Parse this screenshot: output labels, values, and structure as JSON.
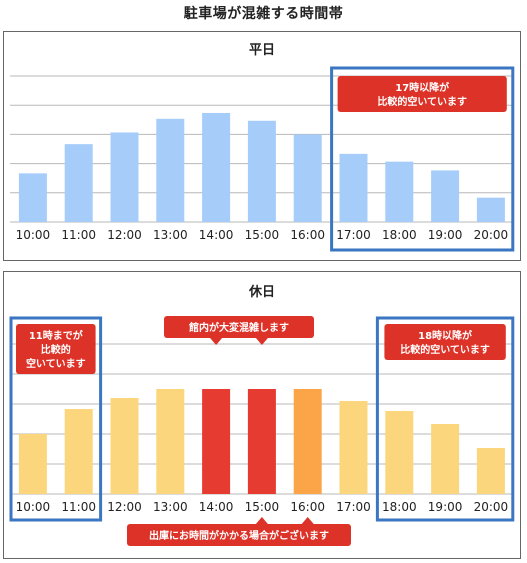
{
  "title": "駐車場が混雑する時間帯",
  "colors": {
    "weekday_bar": "#a6cdfa",
    "holiday_bar": "#fbd67c",
    "holiday_busy": "#e53b30",
    "holiday_medium": "#fba548",
    "callout": "#dc3228",
    "highlight_border": "#3a76c2",
    "grid": "#b8b8b8"
  },
  "chart_data": [
    {
      "type": "bar",
      "title": "平日",
      "categories": [
        "10:00",
        "11:00",
        "12:00",
        "13:00",
        "14:00",
        "15:00",
        "16:00",
        "17:00",
        "18:00",
        "19:00",
        "20:00"
      ],
      "values": [
        50,
        80,
        92,
        106,
        112,
        104,
        90,
        70,
        62,
        53,
        25
      ],
      "ylim": [
        0,
        150
      ],
      "grid": true,
      "highlight": {
        "from": 7,
        "to": 10
      },
      "annotations": [
        {
          "text": [
            "17時以降が",
            "比較的空いています"
          ],
          "position": "top-right"
        }
      ]
    },
    {
      "type": "bar",
      "title": "休日",
      "categories": [
        "10:00",
        "11:00",
        "12:00",
        "13:00",
        "14:00",
        "15:00",
        "16:00",
        "17:00",
        "18:00",
        "19:00",
        "20:00"
      ],
      "values": [
        60,
        85,
        96,
        105,
        105,
        105,
        105,
        93,
        83,
        70,
        46
      ],
      "ylim": [
        0,
        150
      ],
      "grid": true,
      "bar_levels": [
        "normal",
        "normal",
        "normal",
        "normal",
        "busy",
        "busy",
        "medium",
        "normal",
        "normal",
        "normal",
        "normal"
      ],
      "highlights": [
        {
          "from": 0,
          "to": 1
        },
        {
          "from": 8,
          "to": 10
        }
      ],
      "annotations": [
        {
          "text": [
            "11時までが",
            "比較的",
            "空いています"
          ],
          "position": "top-left"
        },
        {
          "text": [
            "館内が大変混雑します"
          ],
          "position": "top-center"
        },
        {
          "text": [
            "18時以降が",
            "比較的空いています"
          ],
          "position": "top-right"
        },
        {
          "text": [
            "出庫にお時間がかかる場合がございます"
          ],
          "position": "bottom-center"
        }
      ]
    }
  ]
}
